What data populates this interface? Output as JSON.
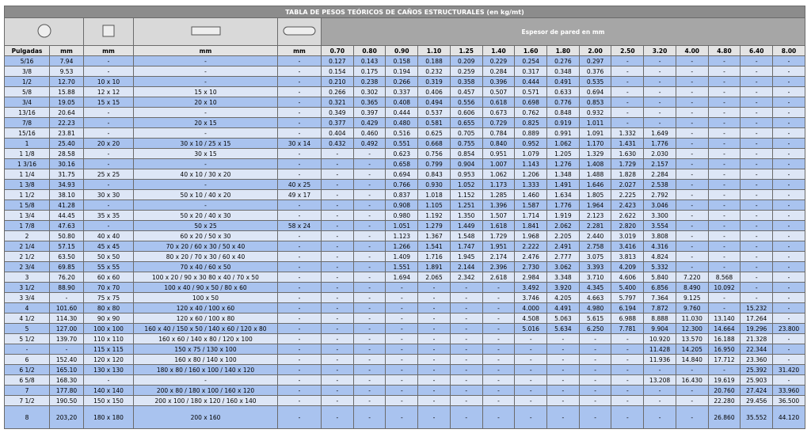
{
  "title": "TABLA DE PESOS TEÓRICOS DE CAÑOS ESTRUCTURALES (en kg/mt)",
  "header": {
    "pulgadas": "Pulgadas",
    "units": [
      "mm",
      "mm",
      "mm",
      "mm"
    ],
    "espesor": "Espesor de pared en mm",
    "thickness": [
      "0.70",
      "0.80",
      "0.90",
      "1.10",
      "1.25",
      "1.40",
      "1.60",
      "1.80",
      "2.00",
      "2.50",
      "3.20",
      "4.00",
      "4.80",
      "6.40",
      "8.00"
    ]
  },
  "rows": [
    [
      "5/16",
      "7.94",
      "-",
      "-",
      "-",
      "0.127",
      "0.143",
      "0.158",
      "0.188",
      "0.209",
      "0.229",
      "0.254",
      "0.276",
      "0.297",
      "-",
      "-",
      "-",
      "-",
      "-",
      "-"
    ],
    [
      "3/8",
      "9.53",
      "-",
      "-",
      "-",
      "0.154",
      "0.175",
      "0.194",
      "0.232",
      "0.259",
      "0.284",
      "0.317",
      "0.348",
      "0.376",
      "-",
      "-",
      "-",
      "-",
      "-",
      "-"
    ],
    [
      "1/2",
      "12.70",
      "10 x 10",
      "-",
      "-",
      "0.210",
      "0.238",
      "0.266",
      "0.319",
      "0.358",
      "0.396",
      "0.444",
      "0.491",
      "0.535",
      "-",
      "-",
      "-",
      "-",
      "-",
      "-"
    ],
    [
      "5/8",
      "15.88",
      "12 x 12",
      "15 x 10",
      "-",
      "0.266",
      "0.302",
      "0.337",
      "0.406",
      "0.457",
      "0.507",
      "0.571",
      "0.633",
      "0.694",
      "-",
      "-",
      "-",
      "-",
      "-",
      "-"
    ],
    [
      "3/4",
      "19.05",
      "15 x 15",
      "20 x 10",
      "-",
      "0.321",
      "0.365",
      "0.408",
      "0.494",
      "0.556",
      "0.618",
      "0.698",
      "0.776",
      "0.853",
      "-",
      "-",
      "-",
      "-",
      "-",
      "-"
    ],
    [
      "13/16",
      "20.64",
      "-",
      "-",
      "-",
      "0.349",
      "0.397",
      "0.444",
      "0.537",
      "0.606",
      "0.673",
      "0.762",
      "0.848",
      "0.932",
      "-",
      "-",
      "-",
      "-",
      "-",
      "-"
    ],
    [
      "7/8",
      "22.23",
      "-",
      "20 x 15",
      "-",
      "0.377",
      "0.429",
      "0.480",
      "0.581",
      "0.655",
      "0.729",
      "0.825",
      "0.919",
      "1.011",
      "-",
      "-",
      "-",
      "-",
      "-",
      "-"
    ],
    [
      "15/16",
      "23.81",
      "-",
      "-",
      "-",
      "0.404",
      "0.460",
      "0.516",
      "0.625",
      "0.705",
      "0.784",
      "0.889",
      "0.991",
      "1.091",
      "1.332",
      "1.649",
      "-",
      "-",
      "-",
      "-"
    ],
    [
      "1",
      "25.40",
      "20 x 20",
      "30 x 10 / 25 x 15",
      "30 x 14",
      "0.432",
      "0.492",
      "0.551",
      "0.668",
      "0.755",
      "0.840",
      "0.952",
      "1.062",
      "1.170",
      "1.431",
      "1.776",
      "-",
      "-",
      "-",
      "-"
    ],
    [
      "1 1/8",
      "28.58",
      "-",
      "30 x 15",
      "-",
      "-",
      "-",
      "0.623",
      "0.756",
      "0.854",
      "0.951",
      "1.079",
      "1.205",
      "1.329",
      "1.630",
      "2.030",
      "-",
      "-",
      "-",
      "-"
    ],
    [
      "1 3/16",
      "30.16",
      "-",
      "-",
      "-",
      "-",
      "-",
      "0.658",
      "0.799",
      "0.904",
      "1.007",
      "1.143",
      "1.276",
      "1.408",
      "1.729",
      "2.157",
      "-",
      "-",
      "-",
      "-"
    ],
    [
      "1 1/4",
      "31.75",
      "25 x 25",
      "40 x 10 / 30 x 20",
      "-",
      "-",
      "-",
      "0.694",
      "0.843",
      "0.953",
      "1.062",
      "1.206",
      "1.348",
      "1.488",
      "1.828",
      "2.284",
      "-",
      "-",
      "-",
      "-"
    ],
    [
      "1 3/8",
      "34.93",
      "-",
      "-",
      "40 x 25",
      "-",
      "-",
      "0.766",
      "0.930",
      "1.052",
      "1.173",
      "1.333",
      "1.491",
      "1.646",
      "2.027",
      "2.538",
      "-",
      "-",
      "-",
      "-"
    ],
    [
      "1 1/2",
      "38.10",
      "30 x 30",
      "50 x 10 / 40 x 20",
      "49 x 17",
      "-",
      "-",
      "0.837",
      "1.018",
      "1.152",
      "1.285",
      "1.460",
      "1.634",
      "1.805",
      "2.225",
      "2.792",
      "-",
      "-",
      "-",
      "-"
    ],
    [
      "1 5/8",
      "41.28",
      "-",
      "-",
      "-",
      "-",
      "-",
      "0.908",
      "1.105",
      "1.251",
      "1.396",
      "1.587",
      "1.776",
      "1.964",
      "2.423",
      "3.046",
      "-",
      "-",
      "-",
      "-"
    ],
    [
      "1 3/4",
      "44.45",
      "35 x 35",
      "50 x 20 / 40 x 30",
      "-",
      "-",
      "-",
      "0.980",
      "1.192",
      "1.350",
      "1.507",
      "1.714",
      "1.919",
      "2.123",
      "2.622",
      "3.300",
      "-",
      "-",
      "-",
      "-"
    ],
    [
      "1 7/8",
      "47.63",
      "-",
      "50 x 25",
      "58 x 24",
      "-",
      "-",
      "1.051",
      "1.279",
      "1.449",
      "1.618",
      "1.841",
      "2.062",
      "2.281",
      "2.820",
      "3.554",
      "-",
      "-",
      "-",
      "-"
    ],
    [
      "2",
      "50.80",
      "40 x 40",
      "60 x 20 / 50 x 30",
      "-",
      "-",
      "-",
      "1.123",
      "1.367",
      "1.548",
      "1.729",
      "1.968",
      "2.205",
      "2.440",
      "3.019",
      "3.808",
      "-",
      "-",
      "-",
      "-"
    ],
    [
      "2 1/4",
      "57.15",
      "45 x 45",
      "70 x 20 / 60 x 30 / 50 x 40",
      "-",
      "-",
      "-",
      "1.266",
      "1.541",
      "1.747",
      "1.951",
      "2.222",
      "2.491",
      "2.758",
      "3.416",
      "4.316",
      "-",
      "-",
      "-",
      "-"
    ],
    [
      "2 1/2",
      "63.50",
      "50 x 50",
      "80 x 20 / 70 x 30 / 60 x 40",
      "-",
      "-",
      "-",
      "1.409",
      "1.716",
      "1.945",
      "2.174",
      "2.476",
      "2.777",
      "3.075",
      "3.813",
      "4.824",
      "-",
      "-",
      "-",
      "-"
    ],
    [
      "2 3/4",
      "69.85",
      "55 x 55",
      "70 x 40 / 60 x 50",
      "-",
      "-",
      "-",
      "1.551",
      "1.891",
      "2.144",
      "2.396",
      "2.730",
      "3.062",
      "3.393",
      "4.209",
      "5.332",
      "-",
      "-",
      "-",
      "-"
    ],
    [
      "3",
      "76.20",
      "60 x 60",
      "100 x 20 / 90 x 30 80 x 40 / 70 x 50",
      "-",
      "-",
      "-",
      "1.694",
      "2.065",
      "2.342",
      "2.618",
      "2.984",
      "3.348",
      "3.710",
      "4.606",
      "5.840",
      "7.220",
      "8.568",
      "-",
      "-"
    ],
    [
      "3 1/2",
      "88.90",
      "70 x 70",
      "100 x 40 / 90 x 50 / 80 x 60",
      "-",
      "-",
      "-",
      "-",
      "-",
      "-",
      "-",
      "3.492",
      "3.920",
      "4.345",
      "5.400",
      "6.856",
      "8.490",
      "10.092",
      "-",
      "-"
    ],
    [
      "3 3/4",
      "-",
      "75 x 75",
      "100 x 50",
      "-",
      "-",
      "-",
      "-",
      "-",
      "-",
      "-",
      "3.746",
      "4.205",
      "4.663",
      "5.797",
      "7.364",
      "9.125",
      "-",
      "-",
      "-"
    ],
    [
      "4",
      "101.60",
      "80 x 80",
      "120 x 40 / 100 x 60",
      "-",
      "-",
      "-",
      "-",
      "-",
      "-",
      "-",
      "4.000",
      "4.491",
      "4.980",
      "6.194",
      "7.872",
      "9.760",
      "-",
      "15.232",
      "-"
    ],
    [
      "4 1/2",
      "114.30",
      "90 x 90",
      "120 x 60 / 100 x 80",
      "-",
      "-",
      "-",
      "-",
      "-",
      "-",
      "-",
      "4.508",
      "5.063",
      "5.615",
      "6.988",
      "8.888",
      "11.030",
      "13.140",
      "17.264",
      "-"
    ],
    [
      "5",
      "127.00",
      "100 x 100",
      "160 x 40 / 150 x 50 / 140 x 60 / 120 x 80",
      "-",
      "-",
      "-",
      "-",
      "-",
      "-",
      "-",
      "5.016",
      "5.634",
      "6.250",
      "7.781",
      "9.904",
      "12.300",
      "14.664",
      "19.296",
      "23.800"
    ],
    [
      "5 1/2",
      "139.70",
      "110 x 110",
      "160 x 60 / 140 x 80 / 120 x 100",
      "-",
      "-",
      "-",
      "-",
      "-",
      "-",
      "-",
      "-",
      "-",
      "-",
      "-",
      "10.920",
      "13.570",
      "16.188",
      "21.328",
      "-"
    ],
    [
      "-",
      "-",
      "115 x 115",
      "150 x 75 / 130 x 100",
      "-",
      "-",
      "-",
      "-",
      "-",
      "-",
      "-",
      "-",
      "-",
      "-",
      "-",
      "11.428",
      "14.205",
      "16.950",
      "22.344",
      "-"
    ],
    [
      "6",
      "152.40",
      "120 x 120",
      "160 x 80 / 140 x 100",
      "-",
      "-",
      "-",
      "-",
      "-",
      "-",
      "-",
      "-",
      "-",
      "-",
      "-",
      "11.936",
      "14.840",
      "17.712",
      "23.360",
      "-"
    ],
    [
      "6 1/2",
      "165.10",
      "130 x 130",
      "180 x 80 / 160 x 100 / 140 x 120",
      "-",
      "-",
      "-",
      "-",
      "-",
      "-",
      "-",
      "-",
      "-",
      "-",
      "-",
      "-",
      "-",
      "-",
      "25.392",
      "31.420"
    ],
    [
      "6 5/8",
      "168.30",
      "-",
      "-",
      "-",
      "-",
      "-",
      "-",
      "-",
      "-",
      "-",
      "-",
      "-",
      "-",
      "-",
      "13.208",
      "16.430",
      "19.619",
      "25.903",
      "-"
    ],
    [
      "7",
      "177.80",
      "140 x 140",
      "200 x 80 / 180 x 100 / 160 x 120",
      "-",
      "-",
      "-",
      "-",
      "-",
      "-",
      "-",
      "-",
      "-",
      "-",
      "-",
      "-",
      "-",
      "20.760",
      "27.424",
      "33.960"
    ],
    [
      "7 1/2",
      "190.50",
      "150 x 150",
      "200 x 100 / 180 x 120 / 160 x 140",
      "-",
      "-",
      "-",
      "-",
      "-",
      "-",
      "-",
      "-",
      "-",
      "-",
      "-",
      "-",
      "-",
      "22.280",
      "29.456",
      "36.500"
    ],
    [
      "8",
      "203,20",
      "180 x 180",
      "200 x 160",
      "-",
      "-",
      "-",
      "-",
      "-",
      "-",
      "-",
      "-",
      "-",
      "-",
      "-",
      "-",
      "-",
      "26.860",
      "35.552",
      "44.120"
    ]
  ]
}
